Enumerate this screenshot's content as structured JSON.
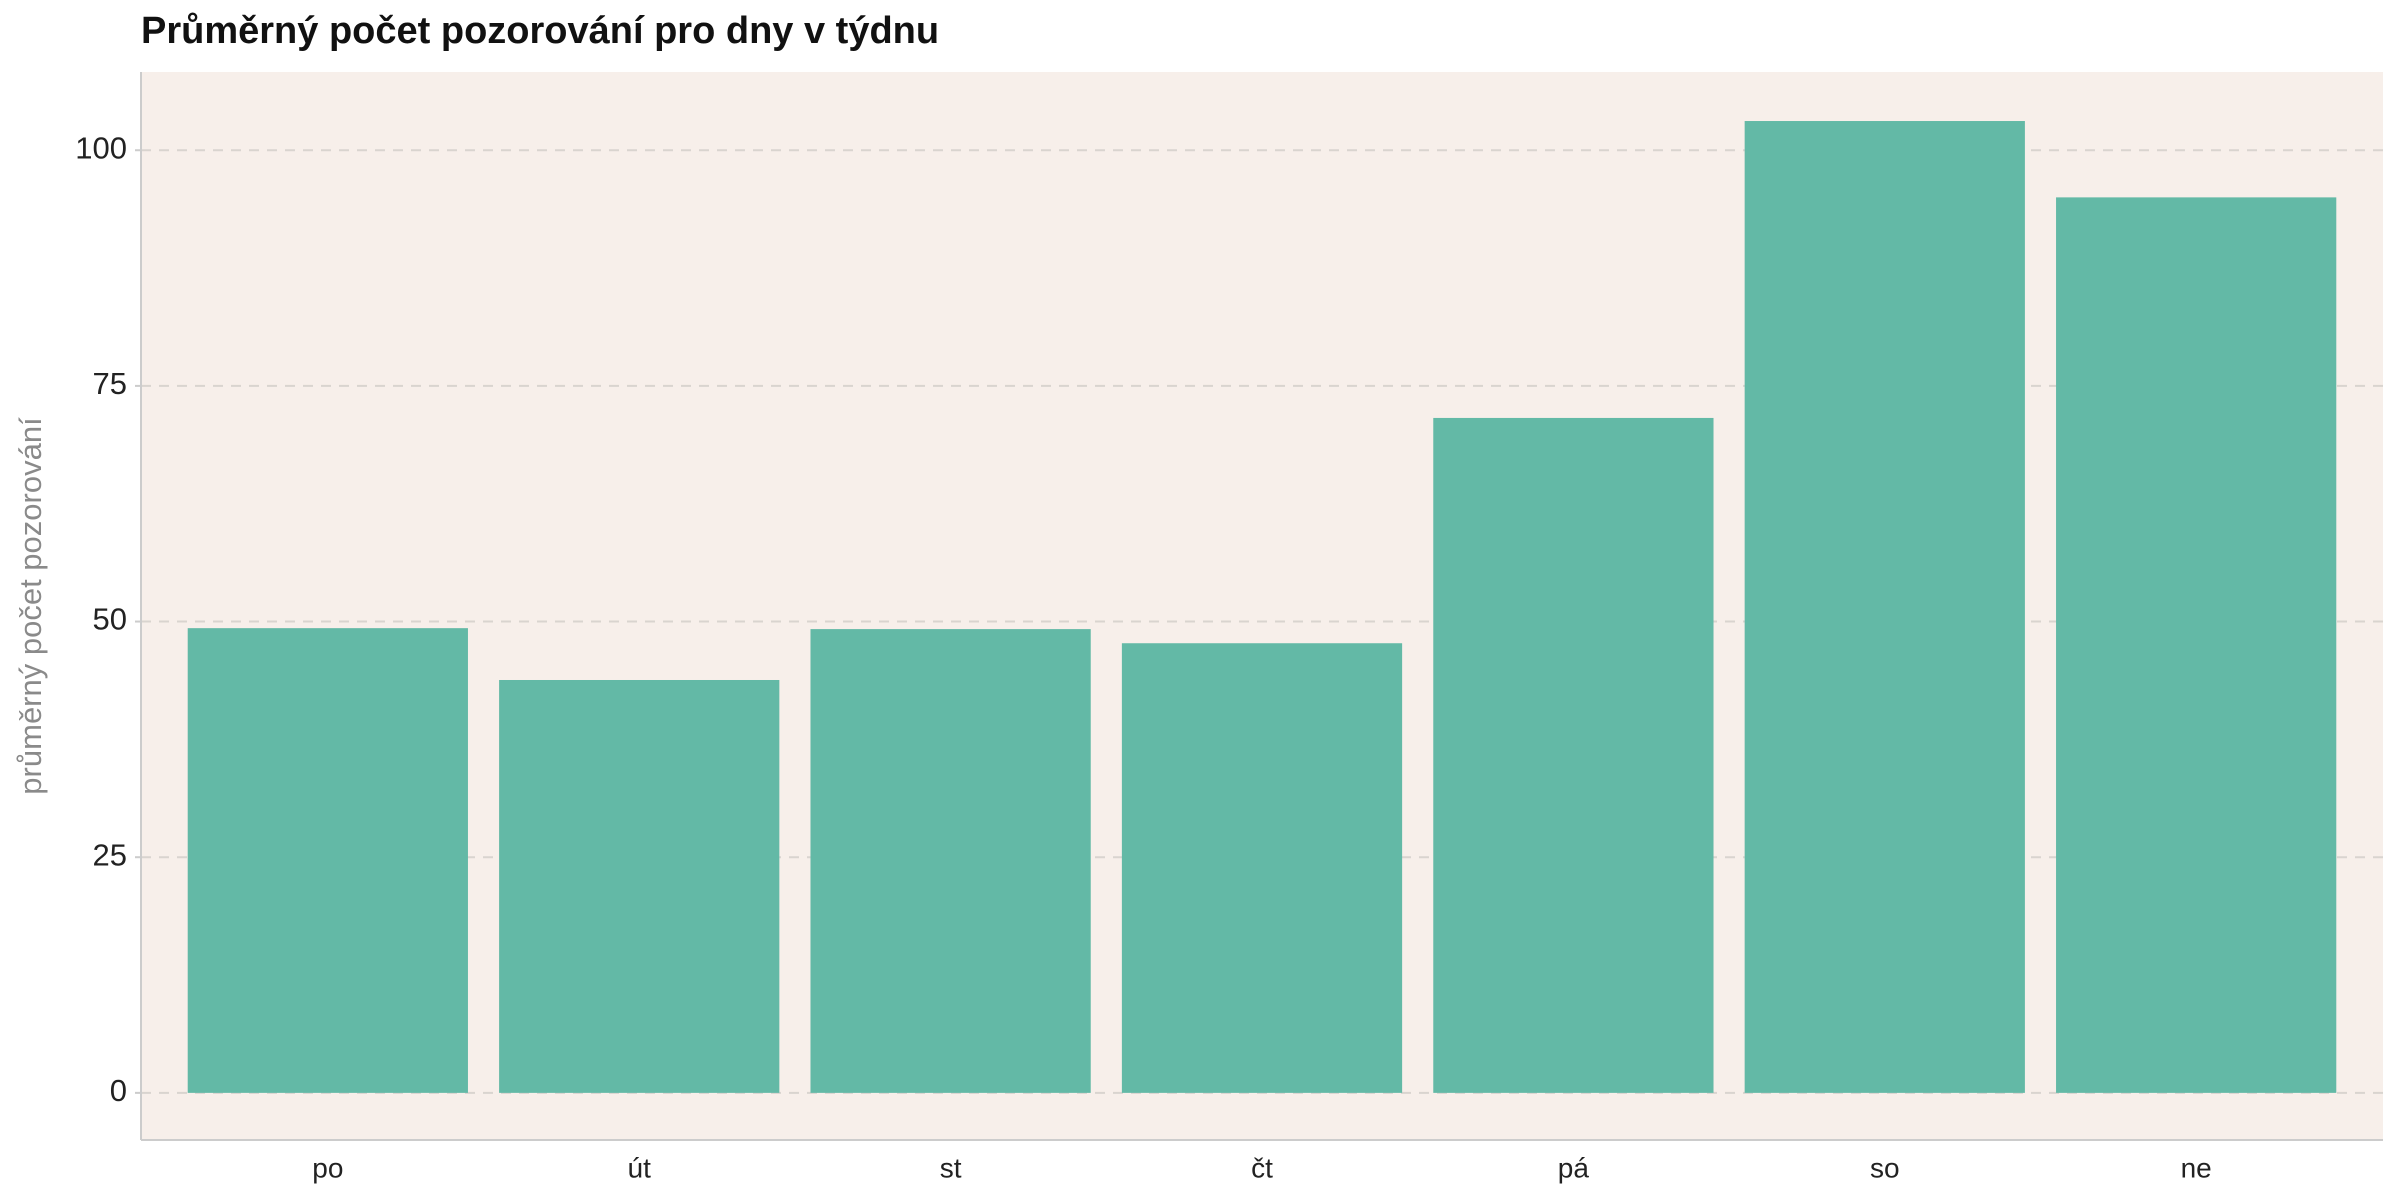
{
  "chart_data": {
    "type": "bar",
    "title": "Průměrný počet pozorování pro dny v týdnu",
    "y_label": "průměrný počet pozorování",
    "categories": [
      "po",
      "út",
      "st",
      "čt",
      "pá",
      "so",
      "ne"
    ],
    "values": [
      49.3,
      43.8,
      49.2,
      47.7,
      71.6,
      103.1,
      95.0
    ],
    "color": "#63b9a6",
    "ylim": [
      -5,
      108.3
    ],
    "yticks": [
      0,
      25,
      50,
      75,
      100
    ],
    "grid": true
  }
}
